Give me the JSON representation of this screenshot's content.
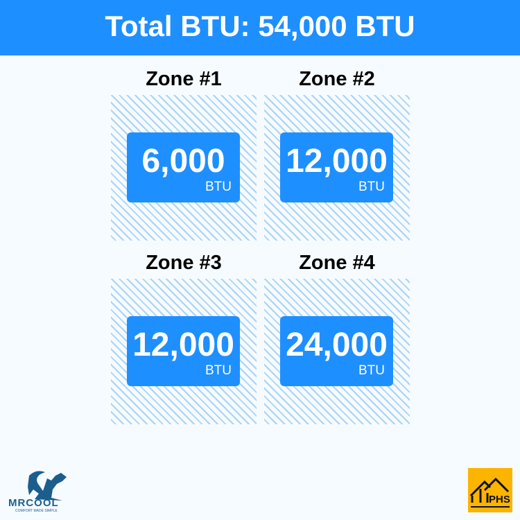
{
  "header": {
    "title": "Total BTU: 54,000 BTU"
  },
  "zones": [
    {
      "label": "Zone #1",
      "value": "6,000",
      "unit": "BTU"
    },
    {
      "label": "Zone #2",
      "value": "12,000",
      "unit": "BTU"
    },
    {
      "label": "Zone #3",
      "value": "12,000",
      "unit": "BTU"
    },
    {
      "label": "Zone #4",
      "value": "24,000",
      "unit": "BTU"
    }
  ],
  "logos": {
    "left": "MRCOOL",
    "left_tagline": "COMFORT MADE SIMPLE",
    "right": "PHS"
  },
  "colors": {
    "accent": "#1e8fff",
    "hatch": "#a9d3f7",
    "phs": "#fbb400",
    "mrcool": "#1b5e8e"
  }
}
